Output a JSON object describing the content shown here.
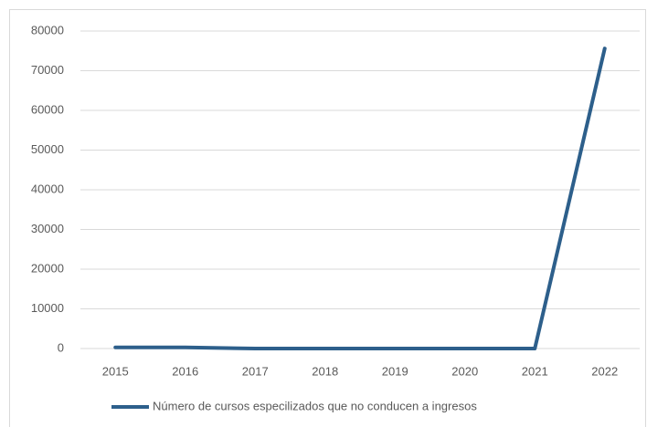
{
  "chart_data": {
    "type": "line",
    "categories": [
      "2015",
      "2016",
      "2017",
      "2018",
      "2019",
      "2020",
      "2021",
      "2022"
    ],
    "series": [
      {
        "name": "Número de cursos especilizados que no conducen a ingresos",
        "color": "#2d5f8b",
        "values": [
          300,
          300,
          0,
          0,
          0,
          0,
          0,
          75600
        ]
      }
    ],
    "ylim": [
      0,
      80000
    ],
    "yticks": [
      0,
      10000,
      20000,
      30000,
      40000,
      50000,
      60000,
      70000,
      80000
    ],
    "grid": true,
    "legend": "bottom"
  }
}
